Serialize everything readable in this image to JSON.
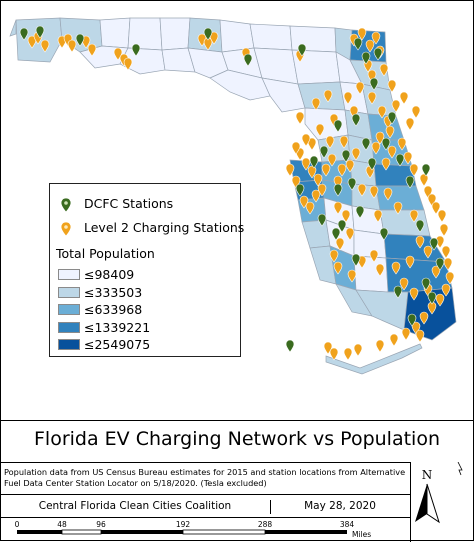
{
  "legend": {
    "dcfc_label": "DCFC Stations",
    "level2_label": "Level 2 Charging Stations",
    "population_title": "Total Population",
    "classes": [
      {
        "label": "≤98409",
        "color": "#eff3ff"
      },
      {
        "label": "≤333503",
        "color": "#bdd7e7"
      },
      {
        "label": "≤633968",
        "color": "#6baed6"
      },
      {
        "label": "≤1339221",
        "color": "#3182bd"
      },
      {
        "label": "≤2549075",
        "color": "#08519c"
      }
    ]
  },
  "colors": {
    "dcfc_marker": "#3a6b1f",
    "level2_marker": "#f0a21c",
    "county_border": "#9aa6b4"
  },
  "title": "Florida EV Charging Network vs Population",
  "note": "Population data from US Census Bureau estimates for 2015 and station locations from Alternative Fuel Data Center Station Locator on 5/18/2020. (Tesla excluded)",
  "organization": "Central Florida Clean Cities Coalition",
  "date": "May 28, 2020",
  "scale": {
    "ticks": [
      "0",
      "48",
      "96",
      "192",
      "288",
      "384"
    ],
    "unit": "Miles"
  },
  "north": "N"
}
